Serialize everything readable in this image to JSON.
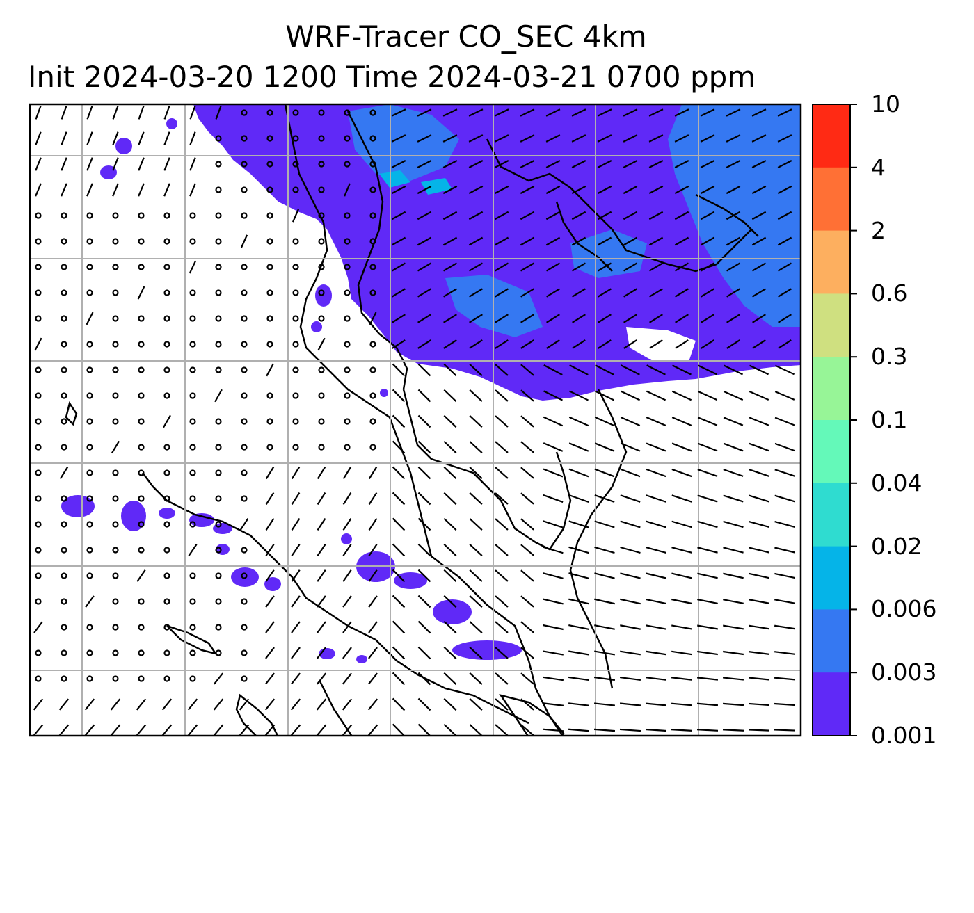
{
  "title": {
    "line1": "WRF-Tracer CO_SEC 4km",
    "line2": "Init 2024-03-20 1200 Time 2024-03-21 0700 ppm"
  },
  "colorbar": {
    "ticks": [
      "10",
      "4",
      "2",
      "0.6",
      "0.3",
      "0.1",
      "0.04",
      "0.02",
      "0.006",
      "0.003",
      "0.001"
    ],
    "colors": [
      "#ff2a14",
      "#ff7035",
      "#fdaf5f",
      "#cfe080",
      "#97f597",
      "#64f9b9",
      "#2fdcd0",
      "#05b4e8",
      "#3578f2",
      "#6029f7"
    ]
  },
  "map": {
    "field_colors": {
      "level_0_001": "#6029f7",
      "level_0_003": "#3578f2",
      "level_0_006": "#05b4e8"
    },
    "gridline_color": "#b0b0b0",
    "coastline_color": "#000000"
  }
}
